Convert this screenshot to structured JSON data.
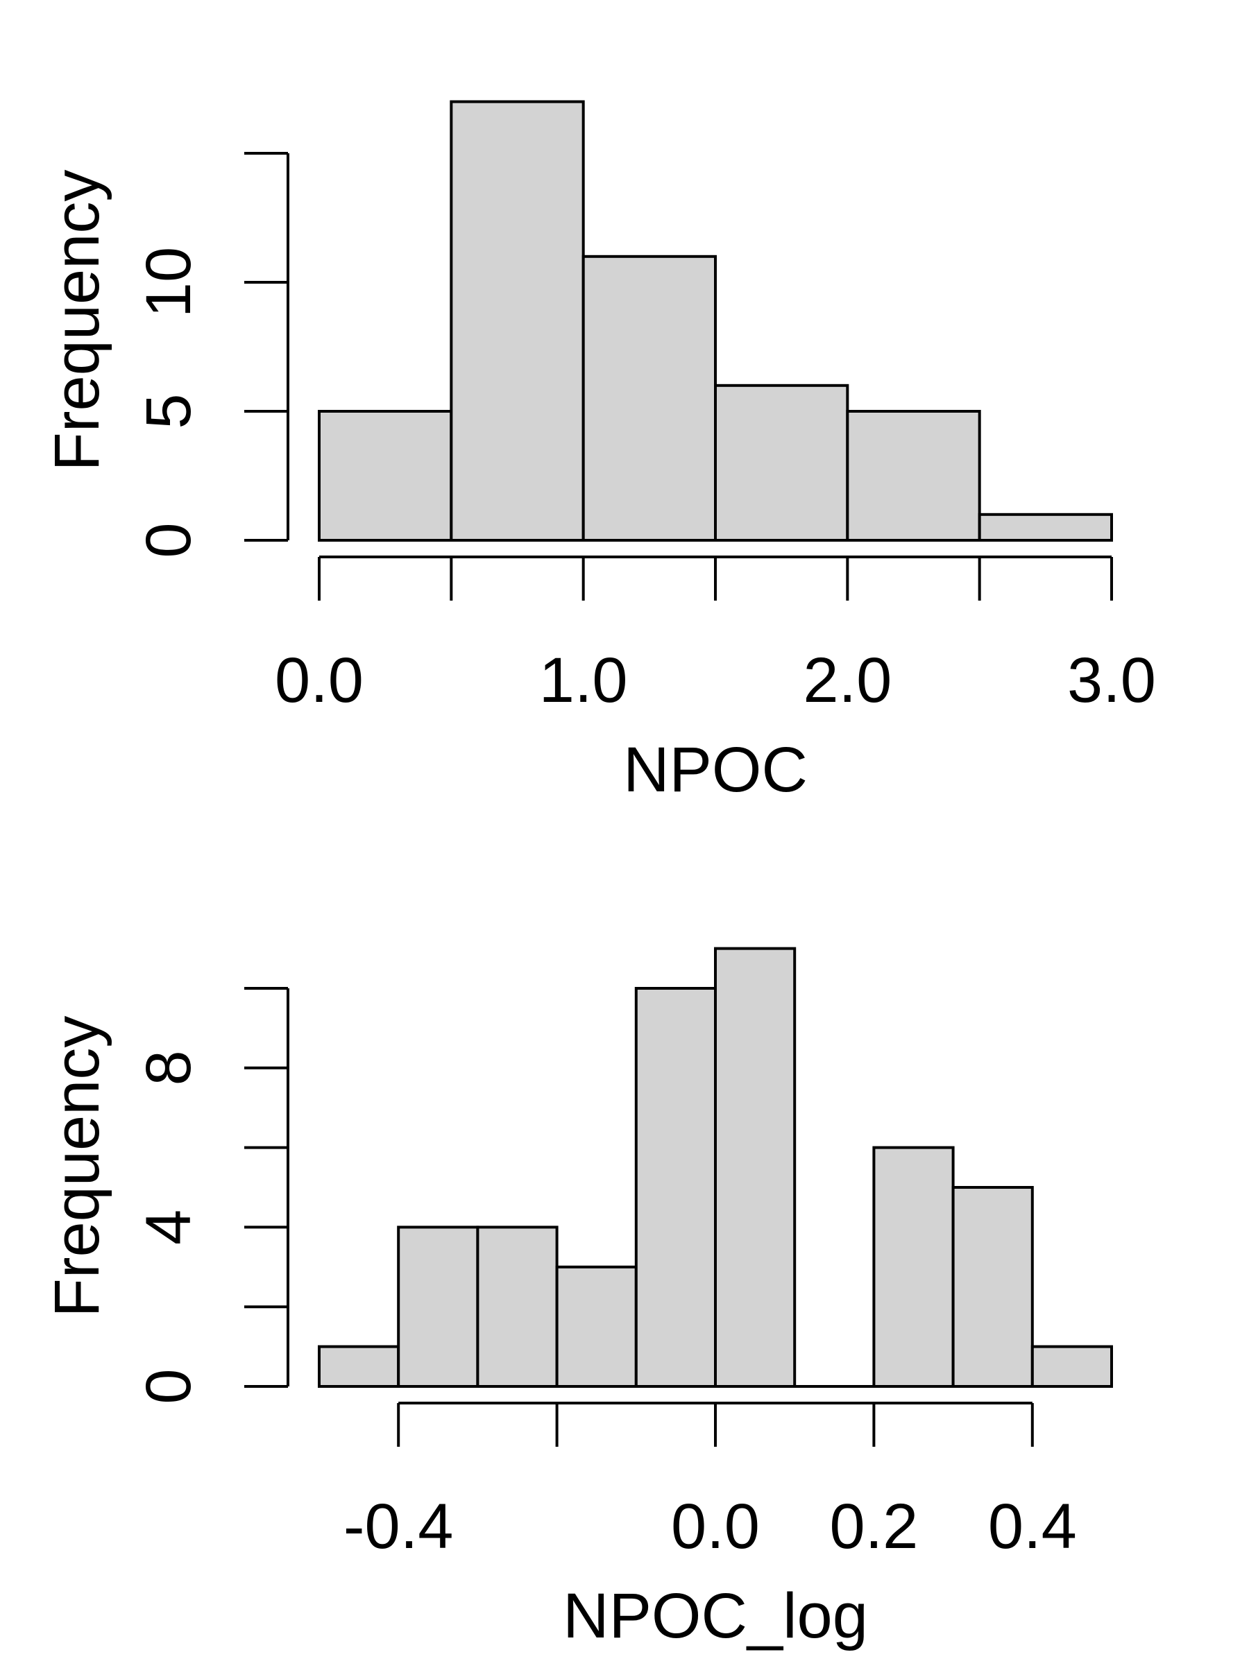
{
  "chart_data": [
    {
      "type": "bar",
      "subtype": "histogram",
      "bins": [
        [
          0.0,
          0.5
        ],
        [
          0.5,
          1.0
        ],
        [
          1.0,
          1.5
        ],
        [
          1.5,
          2.0
        ],
        [
          2.0,
          2.5
        ],
        [
          2.5,
          3.0
        ]
      ],
      "values": [
        5,
        17,
        11,
        6,
        5,
        1
      ],
      "xlabel": "NPOC",
      "ylabel": "Frequency",
      "xlim": [
        0.0,
        3.0
      ],
      "ylim": [
        0,
        17
      ],
      "x_ticks": [
        0.0,
        0.5,
        1.0,
        1.5,
        2.0,
        2.5,
        3.0
      ],
      "x_tick_labels": [
        {
          "value": 0.0,
          "label": "0.0"
        },
        {
          "value": 1.0,
          "label": "1.0"
        },
        {
          "value": 2.0,
          "label": "2.0"
        },
        {
          "value": 3.0,
          "label": "3.0"
        }
      ],
      "y_ticks": [
        0,
        5,
        10,
        15
      ],
      "y_tick_labels": [
        {
          "value": 0,
          "label": "0"
        },
        {
          "value": 5,
          "label": "5"
        },
        {
          "value": 10,
          "label": "10"
        }
      ],
      "bar_color": "#d3d3d3",
      "edge_color": "#000000",
      "grid": false
    },
    {
      "type": "bar",
      "subtype": "histogram",
      "bins": [
        [
          -0.5,
          -0.4
        ],
        [
          -0.4,
          -0.3
        ],
        [
          -0.3,
          -0.2
        ],
        [
          -0.2,
          -0.1
        ],
        [
          -0.1,
          0.0
        ],
        [
          0.0,
          0.1
        ],
        [
          0.1,
          0.2
        ],
        [
          0.2,
          0.3
        ],
        [
          0.3,
          0.4
        ],
        [
          0.4,
          0.5
        ]
      ],
      "values": [
        1,
        4,
        4,
        3,
        10,
        11,
        0,
        6,
        5,
        1
      ],
      "xlabel": "NPOC_log",
      "ylabel": "Frequency",
      "xlim": [
        -0.5,
        0.5
      ],
      "ylim": [
        0,
        11
      ],
      "x_ticks": [
        -0.4,
        -0.2,
        0.0,
        0.2,
        0.4
      ],
      "x_tick_labels": [
        {
          "value": -0.4,
          "label": "-0.4"
        },
        {
          "value": 0.0,
          "label": "0.0"
        },
        {
          "value": 0.2,
          "label": "0.2"
        },
        {
          "value": 0.4,
          "label": "0.4"
        }
      ],
      "y_ticks": [
        0,
        2,
        4,
        6,
        8,
        10
      ],
      "y_tick_labels": [
        {
          "value": 0,
          "label": "0"
        },
        {
          "value": 4,
          "label": "4"
        },
        {
          "value": 8,
          "label": "8"
        }
      ],
      "bar_color": "#d3d3d3",
      "edge_color": "#000000",
      "grid": false
    }
  ]
}
